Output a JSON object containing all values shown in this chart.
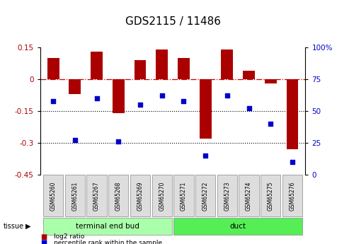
{
  "title": "GDS2115 / 11486",
  "samples": [
    "GSM65260",
    "GSM65261",
    "GSM65267",
    "GSM65268",
    "GSM65269",
    "GSM65270",
    "GSM65271",
    "GSM65272",
    "GSM65273",
    "GSM65274",
    "GSM65275",
    "GSM65276"
  ],
  "log2_ratio": [
    0.1,
    -0.07,
    0.13,
    -0.16,
    0.09,
    0.14,
    0.1,
    -0.28,
    0.14,
    0.04,
    -0.02,
    -0.33
  ],
  "percentile_rank": [
    58,
    27,
    60,
    26,
    55,
    62,
    58,
    15,
    62,
    52,
    40,
    10
  ],
  "bar_color": "#aa0000",
  "dot_color": "#0000cc",
  "hline_color": "#cc0000",
  "dotted_line_color": "#000000",
  "ylim_left": [
    -0.45,
    0.15
  ],
  "ylim_right": [
    0,
    100
  ],
  "yticks_left": [
    0.15,
    0,
    -0.15,
    -0.3,
    -0.45
  ],
  "yticks_right": [
    100,
    75,
    50,
    25,
    0
  ],
  "groups": [
    {
      "label": "terminal end bud",
      "start": 0,
      "end": 5,
      "color": "#aaffaa"
    },
    {
      "label": "duct",
      "start": 6,
      "end": 11,
      "color": "#55ee55"
    }
  ],
  "tissue_label": "tissue",
  "legend_bar_label": "log2 ratio",
  "legend_dot_label": "percentile rank within the sample",
  "tick_fontsize": 7.5,
  "sample_fontsize": 5.5,
  "group_fontsize": 7.5,
  "title_fontsize": 11
}
